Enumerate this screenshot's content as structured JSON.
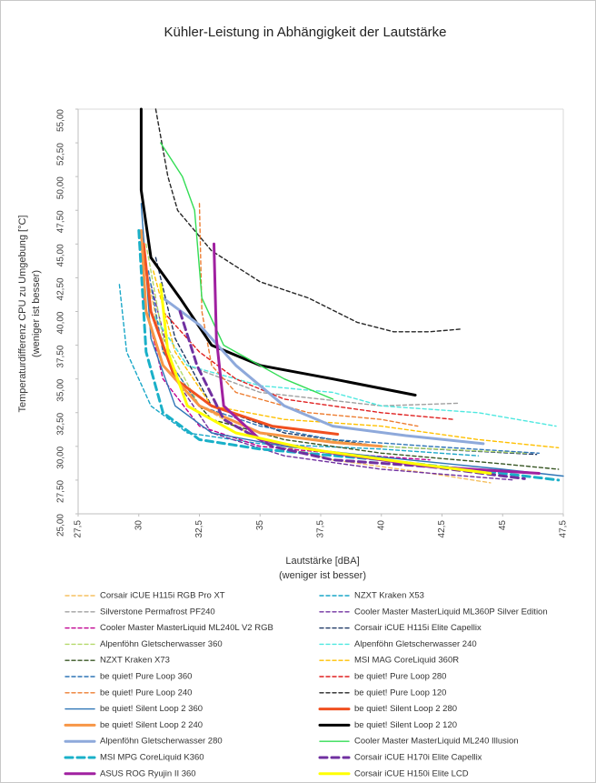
{
  "chart_data": {
    "type": "line",
    "title": "Kühler-Leistung in Abhängigkeit der Lautstärke",
    "x_label": "Lautstärke [dBA]",
    "x_sublabel": "(weniger ist besser)",
    "y_label": "Temperaturdifferenz CPU zu Umgebung [°C]",
    "y_sublabel": "(weniger ist besser)",
    "xlim": [
      27.5,
      47.5
    ],
    "xticks": [
      {
        "value": 27.5,
        "label": "27,5"
      },
      30,
      {
        "value": 32.5,
        "label": "32,5"
      },
      35,
      {
        "value": 37.5,
        "label": "37,5"
      },
      40,
      {
        "value": 42.5,
        "label": "42,5"
      },
      45,
      {
        "value": 47.5,
        "label": "47,5"
      }
    ],
    "ylim": [
      25,
      55
    ],
    "yticks": [
      {
        "value": 25,
        "label": "25,00"
      },
      {
        "value": 27.5,
        "label": "27,50"
      },
      {
        "value": 30,
        "label": "30,00"
      },
      {
        "value": 32.5,
        "label": "32,50"
      },
      {
        "value": 35,
        "label": "35,00"
      },
      {
        "value": 37.5,
        "label": "37,50"
      },
      {
        "value": 40,
        "label": "40,00"
      },
      {
        "value": 42.5,
        "label": "42,50"
      },
      {
        "value": 45,
        "label": "45,00"
      },
      {
        "value": 47.5,
        "label": "47,50"
      },
      {
        "value": 50,
        "label": "50,00"
      },
      {
        "value": 52.5,
        "label": "52,50"
      },
      {
        "value": 55,
        "label": "55,00"
      }
    ],
    "grid": false,
    "series": [
      {
        "name": "Corsair iCUE H115i RGB Pro XT",
        "color": "#f5c060",
        "dashed": true,
        "bold": false,
        "x": [
          30.2,
          31,
          32.5,
          35,
          38,
          42,
          44.5
        ],
        "values": [
          44,
          37,
          33,
          30.5,
          29,
          28,
          27.3
        ]
      },
      {
        "name": "NZXT Kraken X53",
        "color": "#1aa7c8",
        "dashed": true,
        "bold": false,
        "x": [
          29.2,
          29.5,
          30.5,
          32,
          35,
          40,
          44
        ],
        "values": [
          42,
          37,
          33,
          31,
          30.2,
          29.8,
          29.3
        ]
      },
      {
        "name": "Silverstone Permafrost PF240",
        "color": "#a0a0a0",
        "dashed": true,
        "bold": false,
        "x": [
          30.5,
          32,
          35,
          40,
          43.2
        ],
        "values": [
          40,
          36,
          34,
          33,
          33.2
        ]
      },
      {
        "name": "Cooler Master MasterLiquid ML360P Silver Edition",
        "color": "#7030a0",
        "dashed": true,
        "bold": false,
        "x": [
          30.5,
          31.5,
          33,
          36,
          40,
          45.5
        ],
        "values": [
          42,
          35,
          31,
          29.3,
          28.3,
          27.5
        ]
      },
      {
        "name": "Cooler Master MasterLiquid ML240L V2 RGB",
        "color": "#c00090",
        "dashed": true,
        "bold": false,
        "x": [
          30.2,
          31,
          32.5,
          35,
          38,
          42
        ],
        "values": [
          41,
          35,
          31.5,
          30,
          29.5,
          29
        ]
      },
      {
        "name": "Corsair iCUE H115i Elite Capellix",
        "color": "#1f3864",
        "dashed": true,
        "bold": false,
        "x": [
          30.7,
          31.5,
          33,
          36,
          40,
          46.4
        ],
        "values": [
          44,
          38,
          33,
          31,
          30,
          29.4
        ]
      },
      {
        "name": "Alpenföhn Gletscherwasser 360",
        "color": "#b4d96a",
        "dashed": true,
        "bold": false,
        "x": [
          30.3,
          31,
          32.5,
          35,
          40,
          46
        ],
        "values": [
          45,
          38,
          33,
          31,
          30,
          29.5
        ]
      },
      {
        "name": "Alpenföhn Gletscherwasser 240",
        "color": "#4ee8e0",
        "dashed": true,
        "bold": false,
        "x": [
          30.5,
          32,
          35,
          38,
          40,
          44,
          47.2
        ],
        "values": [
          40,
          36,
          34.5,
          34,
          33,
          32.5,
          31.5
        ]
      },
      {
        "name": "NZXT Kraken X73",
        "color": "#375623",
        "dashed": true,
        "bold": false,
        "x": [
          30.5,
          31.5,
          33,
          36,
          40,
          45,
          47.3
        ],
        "values": [
          40,
          35,
          32,
          30.5,
          29.5,
          28.7,
          28.3
        ]
      },
      {
        "name": "MSI MAG CoreLiquid 360R",
        "color": "#ffc000",
        "dashed": true,
        "bold": false,
        "x": [
          30.6,
          31.5,
          33,
          36,
          40,
          44,
          47.3
        ],
        "values": [
          43,
          37,
          33,
          32,
          31.5,
          30.5,
          29.9
        ]
      },
      {
        "name": "be quiet! Pure Loop 360",
        "color": "#2e75b6",
        "dashed": true,
        "bold": false,
        "x": [
          30.4,
          31,
          32.5,
          35,
          38,
          42,
          46.5
        ],
        "values": [
          43,
          37,
          33,
          31.5,
          30.5,
          30,
          29.5
        ]
      },
      {
        "name": "be quiet! Pure Loop 280",
        "color": "#e02020",
        "dashed": true,
        "bold": false,
        "x": [
          31,
          32.5,
          34,
          36,
          40,
          43
        ],
        "values": [
          40,
          37,
          35,
          33.5,
          32.5,
          32
        ]
      },
      {
        "name": "be quiet! Pure Loop 240",
        "color": "#ed7d31",
        "dashed": true,
        "bold": false,
        "x": [
          32.5,
          32.6,
          33,
          34,
          37,
          40,
          41.5
        ],
        "values": [
          48,
          40,
          36,
          34,
          32.5,
          32,
          31.5
        ]
      },
      {
        "name": "be quiet! Pure Loop 120",
        "color": "#262626",
        "dashed": true,
        "bold": false,
        "x": [
          30.7,
          31.2,
          31.6,
          33,
          35,
          37,
          39,
          40.5,
          42,
          43.3
        ],
        "values": [
          55,
          50,
          47.5,
          44.5,
          42.2,
          41,
          39.2,
          38.5,
          38.5,
          38.7
        ]
      },
      {
        "name": "be quiet! Silent Loop 2 360",
        "color": "#2e75b6",
        "dashed": false,
        "bold": false,
        "x": [
          30.1,
          30.5,
          31.5,
          33,
          36,
          40,
          45,
          47.5
        ],
        "values": [
          48,
          38,
          33,
          31,
          30,
          29.2,
          28.3,
          27.8
        ]
      },
      {
        "name": "be quiet! Silent Loop 2 280",
        "color": "#f05020",
        "dashed": false,
        "bold": true,
        "x": [
          30.2,
          30.5,
          31.5,
          33,
          35.5,
          38.2
        ],
        "values": [
          45,
          40,
          35,
          33,
          31.5,
          30.9
        ]
      },
      {
        "name": "be quiet! Silent Loop 2 240",
        "color": "#f79646",
        "dashed": false,
        "bold": true,
        "x": [
          30.1,
          30.3,
          31,
          32.5,
          35,
          38,
          40
        ],
        "values": [
          46,
          40,
          36,
          33,
          31,
          30.3,
          30
        ]
      },
      {
        "name": "be quiet! Silent Loop 2 120",
        "color": "#000000",
        "dashed": false,
        "bold": true,
        "x": [
          30.1,
          30.1,
          30.5,
          31.7,
          33,
          35,
          38,
          41.4
        ],
        "values": [
          55,
          49,
          44,
          41,
          37.5,
          36,
          35,
          33.8
        ]
      },
      {
        "name": "Alpenföhn Gletscherwasser 280",
        "color": "#8ea9db",
        "dashed": false,
        "bold": true,
        "x": [
          31,
          32.5,
          34,
          36,
          38,
          41,
          44.2
        ],
        "values": [
          41,
          39,
          36,
          33,
          31.5,
          30.8,
          30.2
        ]
      },
      {
        "name": "Cooler Master MasterLiquid ML240 Illusion",
        "color": "#33dd55",
        "dashed": false,
        "bold": false,
        "x": [
          30.9,
          31.8,
          32.3,
          32.6,
          33.5,
          36,
          38
        ],
        "values": [
          52.5,
          50,
          47.5,
          41,
          37.5,
          35,
          33.5
        ]
      },
      {
        "name": "MSI MPG CoreLiquid K360",
        "color": "#1ab0c8",
        "dashed": true,
        "bold": true,
        "x": [
          30,
          30.3,
          31,
          32.5,
          35,
          40,
          45,
          47.3
        ],
        "values": [
          46,
          37,
          32.5,
          30.5,
          29.8,
          29,
          28,
          27.5
        ]
      },
      {
        "name": "Corsair iCUE H170i Elite Capellix",
        "color": "#7030a0",
        "dashed": true,
        "bold": true,
        "x": [
          31.7,
          32.4,
          33.5,
          35.5,
          38,
          42,
          45.9
        ],
        "values": [
          40,
          36,
          32,
          30,
          29,
          28.5,
          27.6
        ]
      },
      {
        "name": "ASUS ROG Ryujin II 360",
        "color": "#a020a0",
        "dashed": false,
        "bold": true,
        "x": [
          33.1,
          33.2,
          33.5,
          35,
          38,
          42,
          46.5
        ],
        "values": [
          45,
          38,
          33,
          30.5,
          29.5,
          28.5,
          28
        ]
      },
      {
        "name": "Corsair iCUE H150i Elite LCD",
        "color": "#ffff00",
        "dashed": false,
        "bold": true,
        "x": [
          30.9,
          31.2,
          32,
          34,
          37,
          41,
          44.5
        ],
        "values": [
          42,
          37,
          33,
          31,
          29.8,
          28.8,
          28
        ]
      }
    ]
  }
}
